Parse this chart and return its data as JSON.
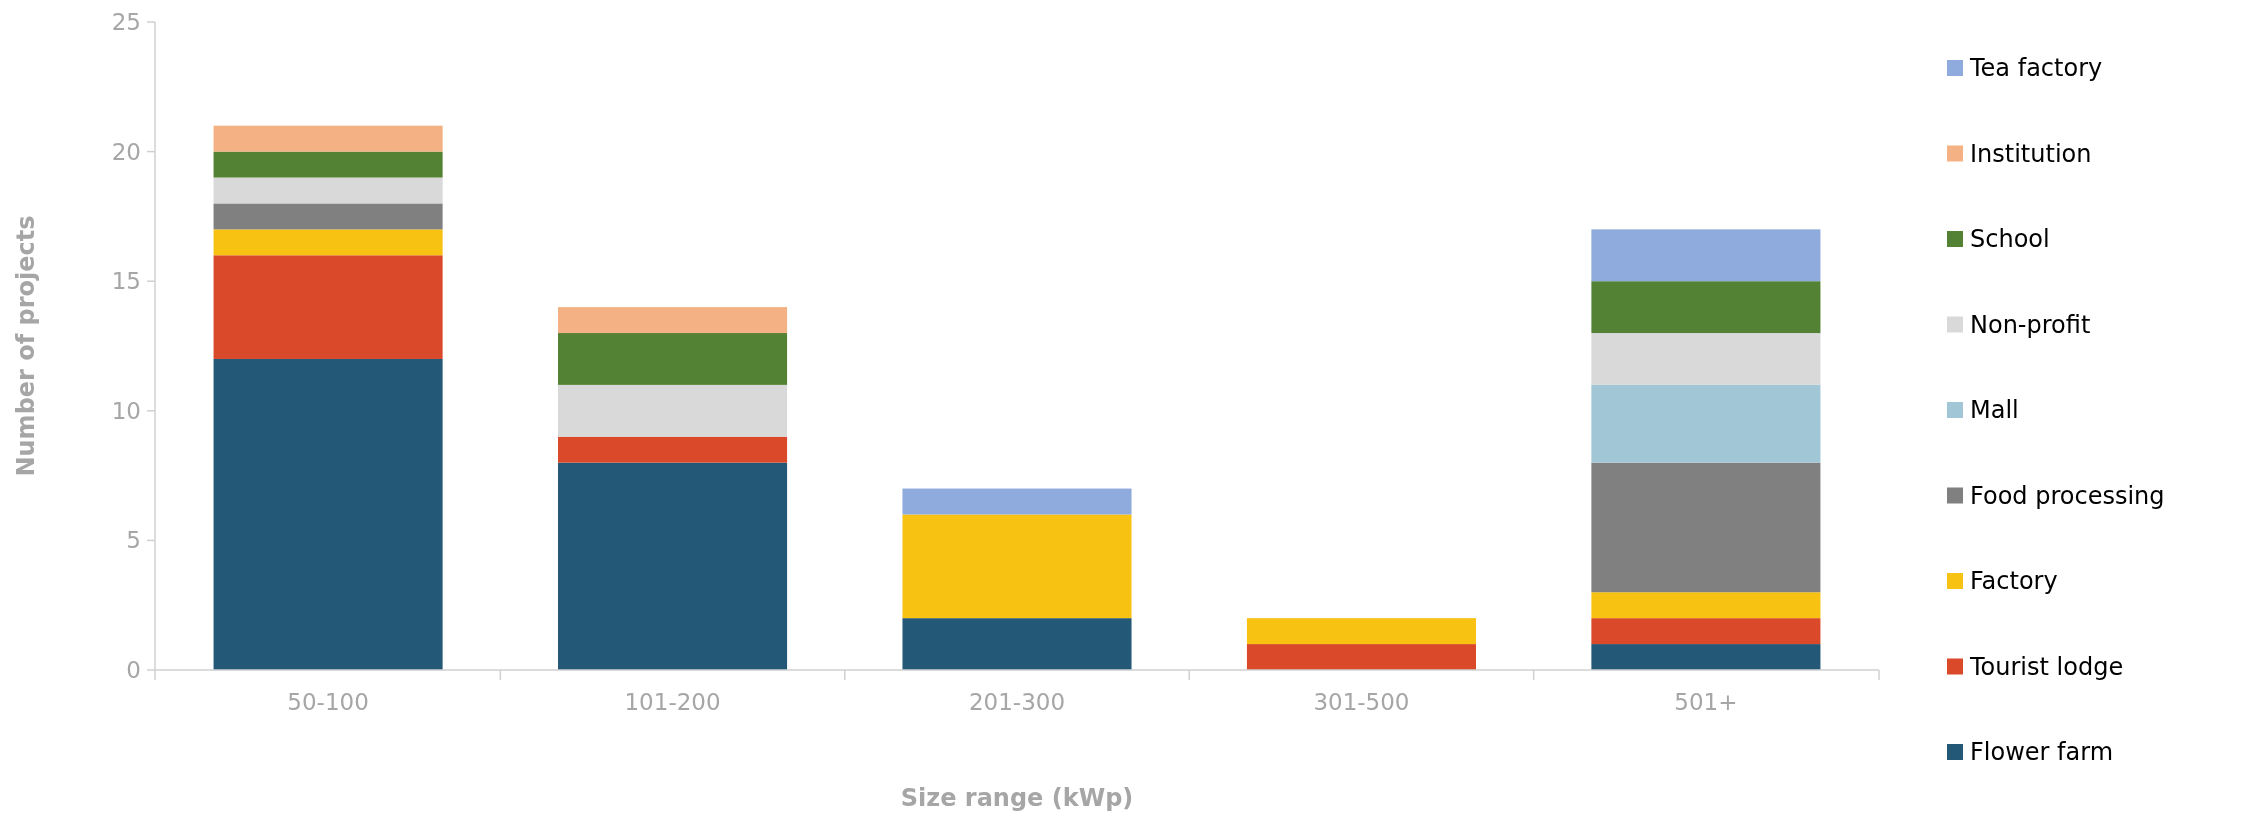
{
  "chart_data": {
    "type": "bar",
    "stacked": true,
    "xlabel": "Size range (kWp)",
    "ylabel": "Number of projects",
    "categories": [
      "50-100",
      "101-200",
      "201-300",
      "301-500",
      "501+"
    ],
    "ylim": [
      0,
      25
    ],
    "yticks": [
      0,
      5,
      10,
      15,
      20,
      25
    ],
    "grid": false,
    "legend": "right",
    "series": [
      {
        "name": "Flower farm",
        "color": "#235876",
        "values": [
          12,
          8,
          2,
          0,
          1
        ]
      },
      {
        "name": "Tourist lodge",
        "color": "#d9492a",
        "values": [
          4,
          1,
          0,
          1,
          1
        ]
      },
      {
        "name": "Factory",
        "color": "#f8c213",
        "values": [
          1,
          0,
          4,
          1,
          1
        ]
      },
      {
        "name": "Food processing",
        "color": "#808080",
        "values": [
          1,
          0,
          0,
          0,
          5
        ]
      },
      {
        "name": "Mall",
        "color": "#a1c6d5",
        "values": [
          0,
          0,
          0,
          0,
          3
        ]
      },
      {
        "name": "Non-profit",
        "color": "#d9d9d9",
        "values": [
          1,
          2,
          0,
          0,
          2
        ]
      },
      {
        "name": "School",
        "color": "#548235",
        "values": [
          1,
          2,
          0,
          0,
          2
        ]
      },
      {
        "name": "Institution",
        "color": "#f4b183",
        "values": [
          1,
          1,
          0,
          0,
          0
        ]
      },
      {
        "name": "Tea factory",
        "color": "#8faadc",
        "values": [
          0,
          0,
          1,
          0,
          2
        ]
      }
    ]
  }
}
